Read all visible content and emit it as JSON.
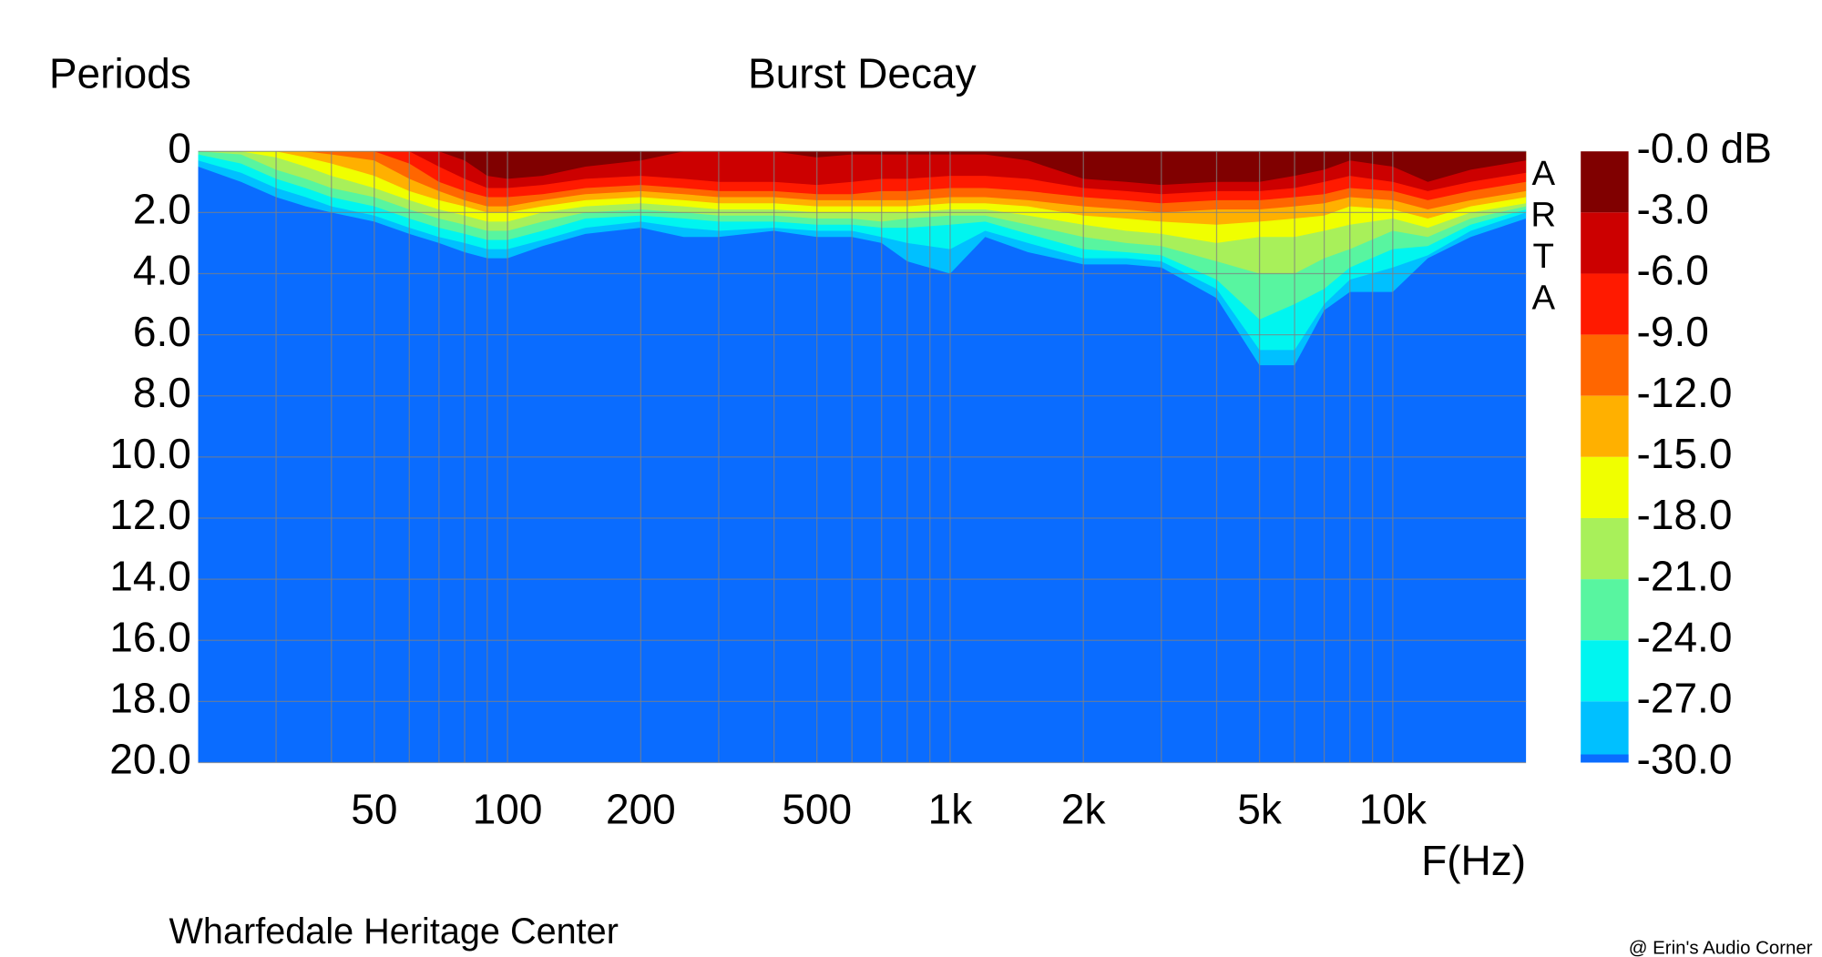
{
  "chart_data": {
    "type": "heatmap",
    "title": "Burst Decay",
    "y_label": "Periods",
    "x_label": "F(Hz)",
    "footer": "Wharfedale Heritage Center",
    "credit": "@ Erin's Audio Corner",
    "watermark": "ARTA",
    "x_log": true,
    "y_inverted": true,
    "grid": true,
    "xlim": [
      20,
      20000
    ],
    "ylim": [
      0,
      20
    ],
    "xticks": [
      50,
      100,
      200,
      500,
      {
        "value": 1000,
        "label": "1k"
      },
      {
        "value": 2000,
        "label": "2k"
      },
      {
        "value": 5000,
        "label": "5k"
      },
      {
        "value": 10000,
        "label": "10k"
      }
    ],
    "xgrid": [
      30,
      40,
      50,
      60,
      70,
      80,
      90,
      100,
      200,
      300,
      400,
      500,
      600,
      700,
      800,
      900,
      1000,
      2000,
      3000,
      4000,
      5000,
      6000,
      7000,
      8000,
      9000,
      10000
    ],
    "yticks": [
      0,
      {
        "value": 2,
        "label": "2.0"
      },
      {
        "value": 4,
        "label": "4.0"
      },
      {
        "value": 6,
        "label": "6.0"
      },
      {
        "value": 8,
        "label": "8.0"
      },
      {
        "value": 10,
        "label": "10.0"
      },
      {
        "value": 12,
        "label": "12.0"
      },
      {
        "value": 14,
        "label": "14.0"
      },
      {
        "value": 16,
        "label": "16.0"
      },
      {
        "value": 18,
        "label": "18.0"
      },
      {
        "value": 20,
        "label": "20.0"
      }
    ],
    "clim": [
      -30,
      0
    ],
    "cticks": [
      {
        "value": 0,
        "label": "-0.0 dB"
      },
      {
        "value": -3,
        "label": "-3.0"
      },
      {
        "value": -6,
        "label": "-6.0"
      },
      {
        "value": -9,
        "label": "-9.0"
      },
      {
        "value": -12,
        "label": "-12.0"
      },
      {
        "value": -15,
        "label": "-15.0"
      },
      {
        "value": -18,
        "label": "-18.0"
      },
      {
        "value": -21,
        "label": "-21.0"
      },
      {
        "value": -24,
        "label": "-24.0"
      },
      {
        "value": -27,
        "label": "-27.0"
      },
      {
        "value": -30,
        "label": "-30.0"
      }
    ],
    "colors": [
      "#800000",
      "#cc0000",
      "#ff1a00",
      "#ff6600",
      "#ffb000",
      "#f0ff00",
      "#a8f05a",
      "#58f5a0",
      "#00f5f0",
      "#00c0ff",
      "#0a6cff"
    ],
    "x": [
      20,
      25,
      30,
      35,
      40,
      50,
      60,
      70,
      80,
      90,
      100,
      120,
      150,
      200,
      250,
      300,
      400,
      500,
      600,
      700,
      800,
      1000,
      1200,
      1500,
      2000,
      2500,
      3000,
      4000,
      5000,
      6000,
      7000,
      8000,
      10000,
      12000,
      15000,
      20000
    ],
    "periods": [
      [
        0,
        0,
        0,
        0,
        0,
        0,
        0,
        0.1,
        0.3,
        0.5
      ],
      [
        0,
        0,
        0,
        0,
        0,
        0,
        0.1,
        0.4,
        0.7,
        1.0
      ],
      [
        0,
        0,
        0,
        0,
        0,
        0.2,
        0.6,
        0.9,
        1.2,
        1.5
      ],
      [
        0,
        0,
        0,
        0,
        0.2,
        0.5,
        0.9,
        1.2,
        1.5,
        1.8
      ],
      [
        0,
        0,
        0,
        0.1,
        0.4,
        0.8,
        1.2,
        1.5,
        1.8,
        2.0
      ],
      [
        0,
        0,
        0,
        0.3,
        0.8,
        1.2,
        1.5,
        1.8,
        2.1,
        2.3
      ],
      [
        0,
        0,
        0.4,
        0.9,
        1.3,
        1.6,
        1.9,
        2.2,
        2.5,
        2.7
      ],
      [
        0,
        0.5,
        1.0,
        1.3,
        1.6,
        1.9,
        2.2,
        2.5,
        2.8,
        3.0
      ],
      [
        0.3,
        0.9,
        1.3,
        1.6,
        1.8,
        2.1,
        2.4,
        2.7,
        3.0,
        3.3
      ],
      [
        0.8,
        1.2,
        1.5,
        1.8,
        2.0,
        2.3,
        2.6,
        2.9,
        3.2,
        3.5
      ],
      [
        0.9,
        1.2,
        1.5,
        1.8,
        2.0,
        2.3,
        2.6,
        2.9,
        3.2,
        3.5
      ],
      [
        0.8,
        1.1,
        1.4,
        1.6,
        1.8,
        2.0,
        2.3,
        2.6,
        2.9,
        3.1
      ],
      [
        0.5,
        0.9,
        1.2,
        1.4,
        1.6,
        1.8,
        2.0,
        2.2,
        2.5,
        2.7
      ],
      [
        0.3,
        0.8,
        1.1,
        1.3,
        1.5,
        1.7,
        1.9,
        2.1,
        2.3,
        2.5
      ],
      [
        0,
        0.9,
        1.2,
        1.4,
        1.6,
        1.8,
        2.0,
        2.2,
        2.5,
        2.8
      ],
      [
        0,
        1.0,
        1.3,
        1.5,
        1.7,
        1.9,
        2.1,
        2.3,
        2.6,
        2.8
      ],
      [
        0,
        1.0,
        1.3,
        1.5,
        1.7,
        1.9,
        2.1,
        2.3,
        2.5,
        2.6
      ],
      [
        0.2,
        1.1,
        1.4,
        1.6,
        1.8,
        2.0,
        2.2,
        2.4,
        2.6,
        2.8
      ],
      [
        0.1,
        1.0,
        1.4,
        1.6,
        1.8,
        2.0,
        2.2,
        2.4,
        2.6,
        2.8
      ],
      [
        0.1,
        0.9,
        1.3,
        1.6,
        1.8,
        2.0,
        2.3,
        2.5,
        2.8,
        3.0
      ],
      [
        0.1,
        0.9,
        1.3,
        1.6,
        1.8,
        2.0,
        2.2,
        2.5,
        3.0,
        3.6
      ],
      [
        0.1,
        0.8,
        1.2,
        1.5,
        1.7,
        1.9,
        2.1,
        2.4,
        3.2,
        4.0
      ],
      [
        0.1,
        0.8,
        1.2,
        1.5,
        1.7,
        1.9,
        2.1,
        2.3,
        2.6,
        2.8
      ],
      [
        0.3,
        0.9,
        1.3,
        1.6,
        1.8,
        2.1,
        2.4,
        2.7,
        3.0,
        3.3
      ],
      [
        0.9,
        1.2,
        1.5,
        1.8,
        2.1,
        2.4,
        2.8,
        3.2,
        3.5,
        3.7
      ],
      [
        1.0,
        1.3,
        1.6,
        1.9,
        2.2,
        2.6,
        3.0,
        3.3,
        3.5,
        3.7
      ],
      [
        1.1,
        1.4,
        1.7,
        2.0,
        2.3,
        2.7,
        3.1,
        3.4,
        3.6,
        3.8
      ],
      [
        1.0,
        1.3,
        1.6,
        1.9,
        2.4,
        3.0,
        3.6,
        4.2,
        4.5,
        4.8
      ],
      [
        1.0,
        1.3,
        1.6,
        1.9,
        2.3,
        2.8,
        4.0,
        5.5,
        6.5,
        7.0
      ],
      [
        0.8,
        1.2,
        1.5,
        1.8,
        2.2,
        2.8,
        4.0,
        5.0,
        6.5,
        7.0
      ],
      [
        0.6,
        1.0,
        1.4,
        1.7,
        2.1,
        2.6,
        3.5,
        4.5,
        5.0,
        5.2
      ],
      [
        0.3,
        0.8,
        1.2,
        1.5,
        1.8,
        2.4,
        3.2,
        3.8,
        4.2,
        4.6
      ],
      [
        0.5,
        1.0,
        1.3,
        1.6,
        1.9,
        2.2,
        2.6,
        3.2,
        3.8,
        4.6
      ],
      [
        1.0,
        1.3,
        1.6,
        1.9,
        2.2,
        2.5,
        2.8,
        3.1,
        3.4,
        3.5
      ],
      [
        0.6,
        1.0,
        1.3,
        1.6,
        1.8,
        2.0,
        2.2,
        2.4,
        2.6,
        2.8
      ],
      [
        0.3,
        0.7,
        1.0,
        1.3,
        1.5,
        1.7,
        1.8,
        1.9,
        2.0,
        2.2
      ]
    ]
  }
}
